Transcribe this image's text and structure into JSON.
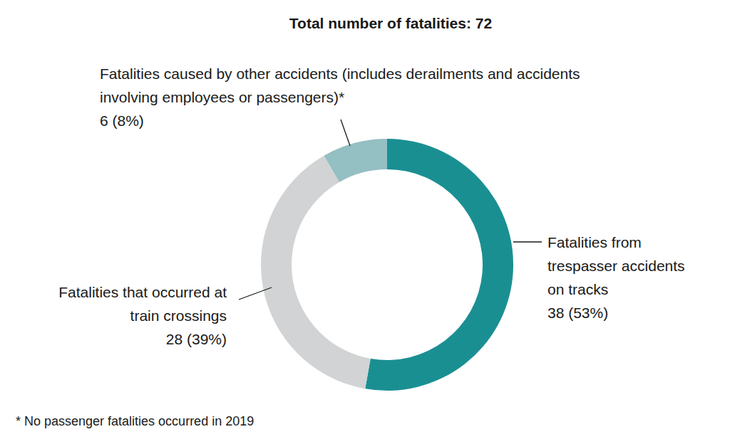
{
  "chart_data": {
    "type": "pie",
    "title": "Total number of fatalities: 72",
    "categories": [
      "Fatalities from\ntrespasser accidents\non tracks",
      "Fatalities that occurred at\ntrain crossings",
      "Fatalities caused by other accidents (includes derailments and accidents\ninvolving employees or passengers)*"
    ],
    "values": [
      38,
      28,
      6
    ],
    "value_labels": [
      "38 (53%)",
      "28 (39%)",
      "6 (8%)"
    ],
    "colors": [
      "#1a8f92",
      "#d1d3d4",
      "#94bfc3"
    ],
    "data_labels": true,
    "footnote": "* No passenger fatalities occurred in 2019"
  }
}
